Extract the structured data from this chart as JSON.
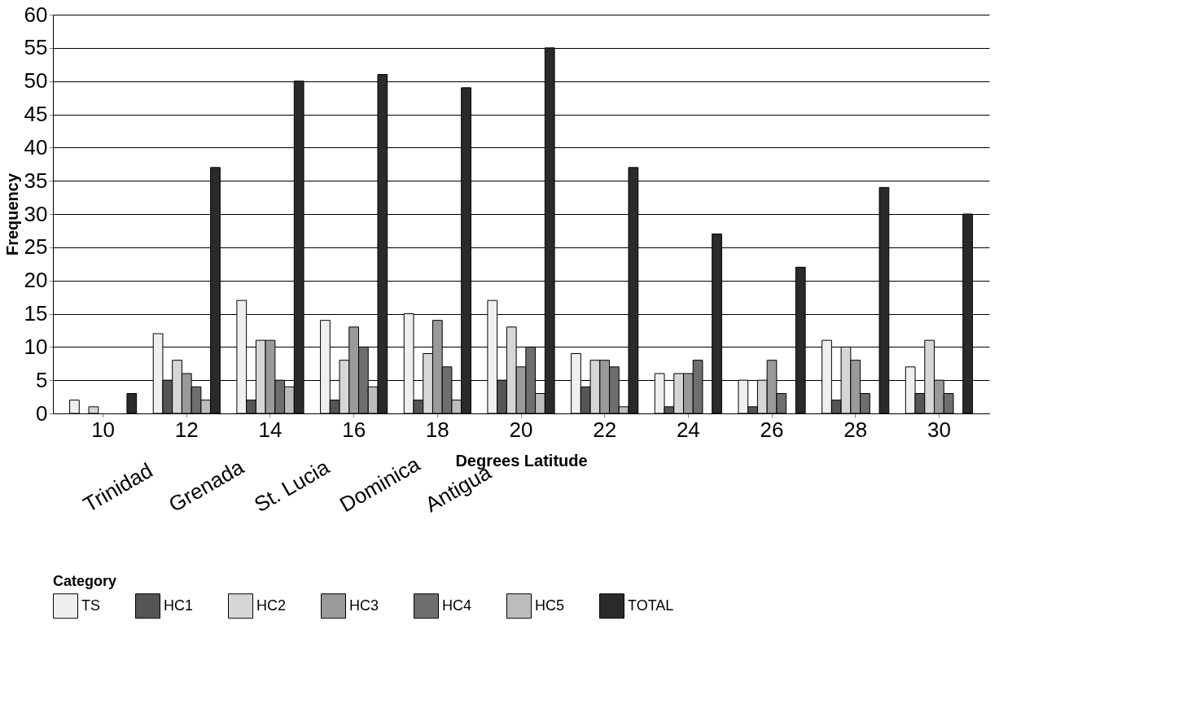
{
  "chart_data": {
    "type": "bar",
    "xlabel": "Degrees Latitude",
    "ylabel": "Frequency",
    "legend_title": "Category",
    "categories": [
      "10",
      "12",
      "14",
      "16",
      "18",
      "20",
      "22",
      "24",
      "26",
      "28",
      "30"
    ],
    "series": [
      {
        "name": "TS",
        "color": "#efefef",
        "values": [
          2,
          12,
          17,
          14,
          15,
          17,
          9,
          6,
          5,
          11,
          7
        ]
      },
      {
        "name": "HC1",
        "color": "#555555",
        "values": [
          0,
          5,
          2,
          2,
          2,
          5,
          4,
          1,
          1,
          2,
          3
        ]
      },
      {
        "name": "HC2",
        "color": "#d6d6d6",
        "values": [
          1,
          8,
          11,
          8,
          9,
          13,
          8,
          6,
          5,
          10,
          11
        ]
      },
      {
        "name": "HC3",
        "color": "#9a9a9a",
        "values": [
          0,
          6,
          11,
          13,
          14,
          7,
          8,
          6,
          8,
          8,
          5
        ]
      },
      {
        "name": "HC4",
        "color": "#6e6e6e",
        "values": [
          0,
          4,
          5,
          10,
          7,
          10,
          7,
          8,
          3,
          3,
          3
        ]
      },
      {
        "name": "HC5",
        "color": "#bcbcbc",
        "values": [
          0,
          2,
          4,
          4,
          2,
          3,
          1,
          0,
          0,
          0,
          0
        ]
      },
      {
        "name": "TOTAL",
        "color": "#2a2a2a",
        "values": [
          3,
          37,
          50,
          51,
          49,
          55,
          37,
          27,
          22,
          34,
          30
        ]
      }
    ],
    "ylim": [
      0,
      60
    ],
    "yticks": [
      0,
      5,
      10,
      15,
      20,
      25,
      30,
      35,
      40,
      45,
      50,
      55,
      60
    ],
    "grid": "y",
    "legend": "bottom",
    "annotations": [
      "Trinidad",
      "Grenada",
      "St. Lucia",
      "Dominica",
      "Antigua"
    ]
  }
}
